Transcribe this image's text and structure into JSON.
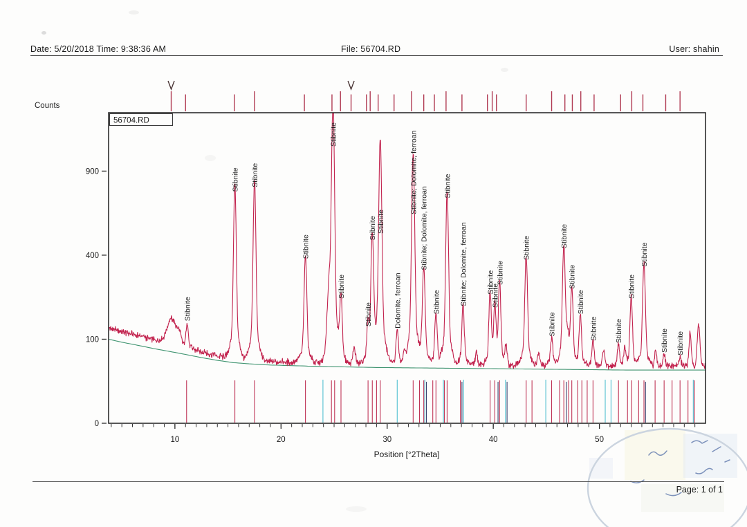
{
  "header": {
    "date_time": "Date: 5/20/2018 Time: 9:38:36 AM",
    "file": "File: 56704.RD",
    "user": "User: shahin"
  },
  "footer": {
    "page_label": "Page: 1 of 1"
  },
  "chart_data": {
    "type": "line",
    "title": "56704.RD",
    "xlabel": "Position [°2Theta]",
    "ylabel": "Counts",
    "x_range": [
      3.75,
      60
    ],
    "x_ticks": [
      10,
      20,
      30,
      40,
      50
    ],
    "y_ticks": [
      0,
      100,
      400,
      900
    ],
    "y_scale": "sqrt",
    "y_max": 1365,
    "grid": false,
    "legend_position": "top-left",
    "trace_color": "#c2234e",
    "baseline_color": "#3f9470",
    "stick_color_stibnite": "#bf3456",
    "stick_color_dolomite": "#5fc4d4",
    "stick_color_overlap": "#3a4470",
    "reference_tick_color": "#b03a52",
    "peaks": [
      {
        "two_theta": 11.15,
        "counts": 140,
        "label": "Stibnite"
      },
      {
        "two_theta": 15.65,
        "counts": 740,
        "label": "Stibnite"
      },
      {
        "two_theta": 17.5,
        "counts": 770,
        "label": "Stibnite"
      },
      {
        "two_theta": 22.3,
        "counts": 370,
        "label": "Stibnite"
      },
      {
        "two_theta": 24.9,
        "counts": 1360,
        "label": "Stibnite",
        "label_y": 212
      },
      {
        "two_theta": 25.65,
        "counts": 210,
        "label": "Stibnite"
      },
      {
        "two_theta": 28.2,
        "counts": 125,
        "label": "Stibnite"
      },
      {
        "two_theta": 28.6,
        "counts": 460,
        "label": "Stibnite"
      },
      {
        "two_theta": 29.35,
        "counts": 1050,
        "label": "Stibnite",
        "label_y": 338
      },
      {
        "two_theta": 30.95,
        "counts": 120,
        "label": "Dolomite, ferroan"
      },
      {
        "two_theta": 32.45,
        "counts": 950,
        "label": "Stibnite; Dolomite, ferroan",
        "label_y": 310
      },
      {
        "two_theta": 33.45,
        "counts": 320,
        "label": "Stibnite; Dolomite, ferroan"
      },
      {
        "two_theta": 34.6,
        "counts": 160,
        "label": "Stibnite"
      },
      {
        "two_theta": 35.65,
        "counts": 700,
        "label": "Stibnite"
      },
      {
        "two_theta": 37.15,
        "counts": 185,
        "label": "Stibnite; Dolomite, ferroan"
      },
      {
        "two_theta": 39.7,
        "counts": 225,
        "label": "Stibnite"
      },
      {
        "two_theta": 40.15,
        "counts": 180,
        "label": "Stibnite"
      },
      {
        "two_theta": 40.6,
        "counts": 260,
        "label": "Stibnite"
      },
      {
        "two_theta": 43.1,
        "counts": 365,
        "label": "Stibnite"
      },
      {
        "two_theta": 45.5,
        "counts": 100,
        "label": "Stibnite"
      },
      {
        "two_theta": 46.65,
        "counts": 420,
        "label": "Stibnite"
      },
      {
        "two_theta": 47.4,
        "counts": 245,
        "label": "Stibnite"
      },
      {
        "two_theta": 48.2,
        "counts": 160,
        "label": "Stibnite"
      },
      {
        "two_theta": 49.4,
        "counts": 90,
        "label": "Stibnite"
      },
      {
        "two_theta": 51.8,
        "counts": 85,
        "label": "Stibnite"
      },
      {
        "two_theta": 53.0,
        "counts": 210,
        "label": "Stibnite"
      },
      {
        "two_theta": 54.2,
        "counts": 335,
        "label": "Stibnite"
      },
      {
        "two_theta": 56.1,
        "counts": 65,
        "label": "Stibnite"
      },
      {
        "two_theta": 57.6,
        "counts": 60,
        "label": "Stibnite"
      }
    ],
    "minor_bumps": [
      [
        9.7,
        65,
        0.42
      ],
      [
        10.4,
        22,
        0.18
      ],
      [
        24.55,
        180,
        0.16
      ],
      [
        26.9,
        28,
        0.12
      ],
      [
        31.6,
        18,
        0.1
      ],
      [
        38.4,
        22,
        0.1
      ],
      [
        41.2,
        35,
        0.1
      ],
      [
        44.3,
        26,
        0.1
      ],
      [
        47.0,
        55,
        0.12
      ],
      [
        50.4,
        30,
        0.1
      ],
      [
        52.4,
        32,
        0.1
      ],
      [
        55.3,
        26,
        0.1
      ],
      [
        58.55,
        70,
        0.1
      ],
      [
        59.35,
        90,
        0.12
      ]
    ],
    "baseline": [
      [
        3.75,
        100
      ],
      [
        5,
        93
      ],
      [
        6.5,
        86
      ],
      [
        8,
        79
      ],
      [
        9.5,
        73
      ],
      [
        11,
        67
      ],
      [
        12.5,
        61
      ],
      [
        14,
        56
      ],
      [
        15.5,
        52
      ],
      [
        17,
        50
      ],
      [
        19,
        48
      ],
      [
        21,
        47
      ],
      [
        23,
        46
      ],
      [
        26,
        45
      ],
      [
        29,
        44
      ],
      [
        32,
        43.5
      ],
      [
        35,
        43
      ],
      [
        38,
        42.5
      ],
      [
        41,
        42
      ],
      [
        44,
        41.5
      ],
      [
        47,
        41
      ],
      [
        50,
        40.5
      ],
      [
        53,
        40
      ],
      [
        56,
        40
      ],
      [
        60,
        40
      ]
    ],
    "reference_ticks_top": [
      9.65,
      11.0,
      15.6,
      17.5,
      22.2,
      24.8,
      25.6,
      26.6,
      28.05,
      28.4,
      29.15,
      30.65,
      32.3,
      33.45,
      34.45,
      35.55,
      37.05,
      39.45,
      39.9,
      40.3,
      43.1,
      45.5,
      46.75,
      47.45,
      48.25,
      49.5,
      52.0,
      53.05,
      54.1,
      56.25,
      57.6
    ],
    "marker_arrows_deg": [
      9.65,
      26.6
    ],
    "reference_sticks_stibnite": [
      11.1,
      15.65,
      17.5,
      22.3,
      24.75,
      25.05,
      25.65,
      28.2,
      28.6,
      29.0,
      29.35,
      32.45,
      33.05,
      33.45,
      34.3,
      34.6,
      35.4,
      35.65,
      36.9,
      39.7,
      40.15,
      40.6,
      43.1,
      43.65,
      45.5,
      46.25,
      46.65,
      47.1,
      47.4,
      47.95,
      48.35,
      48.85,
      49.4,
      51.8,
      52.65,
      53.05,
      53.7,
      54.2,
      55.25,
      56.1,
      56.85,
      57.6,
      58.35,
      58.95
    ],
    "reference_sticks_dolomite": [
      23.95,
      30.95,
      33.55,
      35.3,
      37.2,
      41.15,
      44.95,
      50.55,
      51.1,
      58.85
    ],
    "reference_sticks_overlap": [
      33.7,
      37.05,
      40.45,
      41.3,
      46.9,
      54.35
    ]
  }
}
